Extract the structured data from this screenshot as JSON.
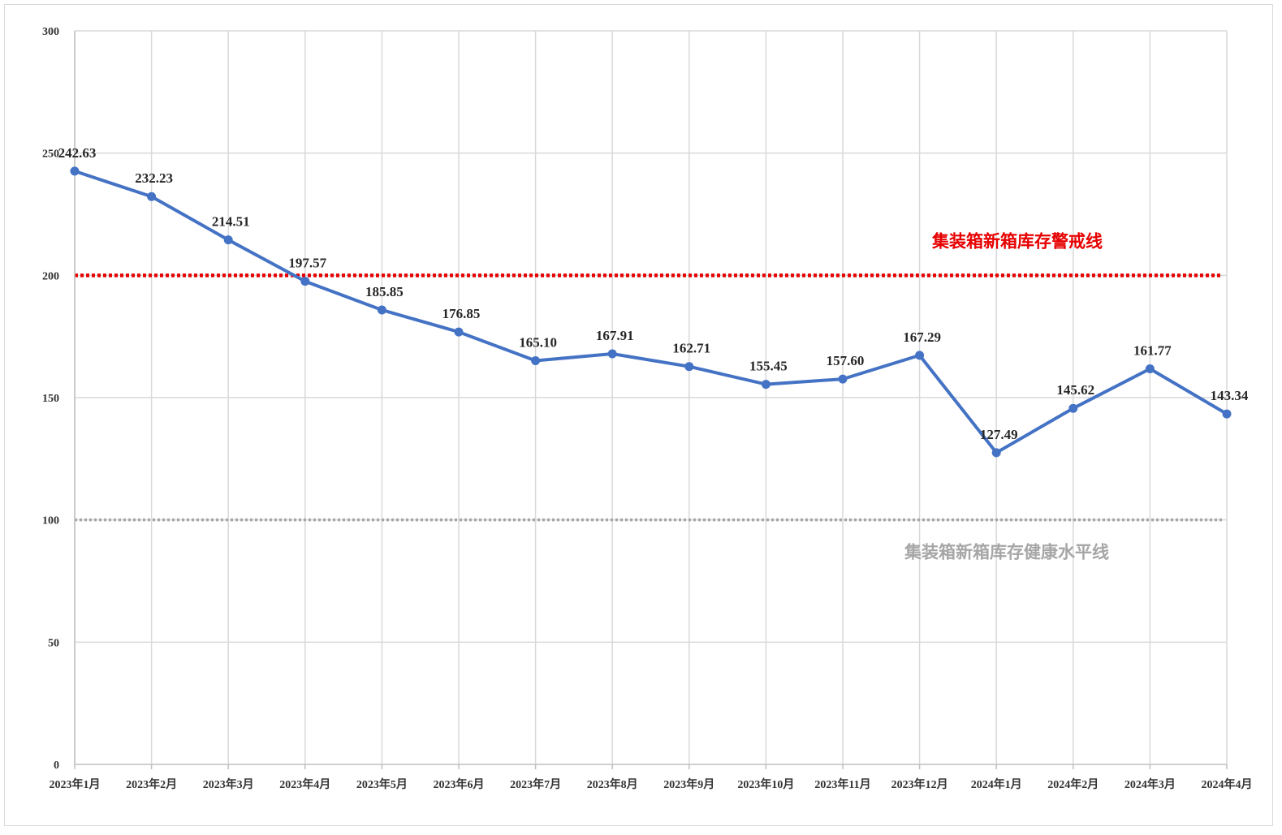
{
  "chart_data": {
    "type": "line",
    "title": "",
    "xlabel": "",
    "ylabel": "",
    "categories": [
      "2023年1月",
      "2023年2月",
      "2023年3月",
      "2023年4月",
      "2023年5月",
      "2023年6月",
      "2023年7月",
      "2023年8月",
      "2023年9月",
      "2023年10月",
      "2023年11月",
      "2023年12月",
      "2024年1月",
      "2024年2月",
      "2024年3月",
      "2024年4月"
    ],
    "series": [
      {
        "values": [
          242.63,
          232.23,
          214.51,
          197.57,
          185.85,
          176.85,
          165.1,
          167.91,
          162.71,
          155.45,
          157.6,
          167.29,
          127.49,
          145.62,
          161.77,
          143.34
        ],
        "labels": [
          "242.63",
          "232.23",
          "214.51",
          "197.57",
          "185.85",
          "176.85",
          "165.10",
          "167.91",
          "162.71",
          "155.45",
          "157.60",
          "167.29",
          "127.49",
          "145.62",
          "161.77",
          "143.34"
        ],
        "color": "#4472c4"
      }
    ],
    "ylim": [
      0,
      300
    ],
    "yticks": [
      0,
      50,
      100,
      150,
      200,
      250,
      300
    ],
    "grid": true,
    "legend": "none",
    "reference_lines": [
      {
        "value": 200,
        "label": "集装箱新箱库存警戒线",
        "color": "#e60000",
        "style": "dotted"
      },
      {
        "value": 100,
        "label": "集装箱新箱库存健康水平线",
        "color": "#a6a6a6",
        "style": "dotted"
      }
    ]
  },
  "colors": {
    "grid": "#d9d9d9",
    "axis": "#bfbfbf",
    "series": "#4472c4",
    "warning": "#e60000",
    "healthy": "#a6a6a6"
  }
}
